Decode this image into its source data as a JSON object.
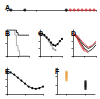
{
  "chart_data": [
    {
      "type": "timeline",
      "title": "A",
      "x": [
        -28,
        -21,
        0,
        2,
        4,
        6,
        8,
        10,
        12,
        14
      ],
      "values": [
        0,
        0,
        0,
        0,
        0,
        0,
        0,
        0,
        0,
        0
      ],
      "colors": [
        "#000000",
        "#000000",
        "#000000",
        "#d62728",
        "#d62728",
        "#d62728",
        "#d62728",
        "#d62728",
        "#d62728",
        "#d62728"
      ],
      "xlim": [
        -30,
        15
      ],
      "xticks": [
        -30,
        -15,
        0,
        15
      ],
      "ylim": [
        -1,
        1
      ],
      "yticks": [],
      "tick_labels": false,
      "marker": "circle"
    },
    {
      "type": "line",
      "title": "B",
      "x": [
        0,
        1,
        2,
        3,
        4,
        5,
        6,
        7,
        8,
        9,
        10,
        11,
        12,
        13,
        14
      ],
      "series": [
        {
          "color": "#999999",
          "values": [
            100,
            100,
            100,
            100,
            100,
            80,
            40,
            20,
            0,
            0,
            0,
            0,
            0,
            0,
            0
          ]
        },
        {
          "color": "#000000",
          "values": [
            100,
            100,
            100,
            100,
            100,
            100,
            90,
            80,
            80,
            80,
            80,
            80,
            80,
            80,
            80
          ]
        }
      ],
      "xlim": [
        0,
        14
      ],
      "xticks": [
        0,
        7,
        14
      ],
      "ylim": [
        0,
        100
      ],
      "yticks": [
        0,
        50,
        100
      ],
      "line_style": "step",
      "tick_labels": false
    },
    {
      "type": "line",
      "title": "C",
      "x": [
        0,
        1,
        2,
        3,
        4,
        5,
        6,
        7,
        8,
        9,
        10
      ],
      "series": [
        {
          "color": "#999999",
          "values": [
            100,
            99,
            97,
            94,
            90,
            85,
            80,
            78,
            null,
            null,
            null
          ]
        },
        {
          "color": "#000000",
          "values": [
            100,
            100,
            98,
            95,
            92,
            88,
            85,
            84,
            86,
            90,
            93
          ]
        }
      ],
      "xlim": [
        0,
        10
      ],
      "xticks": [
        0,
        5,
        10
      ],
      "ylim": [
        70,
        105
      ],
      "yticks": [
        70,
        80,
        90,
        100
      ],
      "marker": "circle",
      "tick_labels": false
    },
    {
      "type": "line",
      "title": "D",
      "x": [
        0,
        2,
        4,
        6,
        8,
        10,
        12
      ],
      "series": [
        {
          "color": "#000000",
          "values": [
            100,
            97,
            90,
            84,
            80,
            83,
            88
          ]
        },
        {
          "color": "#000000",
          "values": [
            100,
            95,
            88,
            80,
            76,
            79,
            85
          ]
        },
        {
          "color": "#d62728",
          "values": [
            100,
            96,
            86,
            78,
            74,
            null,
            null
          ]
        },
        {
          "color": "#d62728",
          "values": [
            100,
            94,
            84,
            76,
            null,
            null,
            null
          ]
        },
        {
          "color": "#d62728",
          "values": [
            100,
            98,
            92,
            86,
            82,
            84,
            90
          ]
        }
      ],
      "xlim": [
        0,
        12
      ],
      "xticks": [
        0,
        6,
        12
      ],
      "ylim": [
        70,
        105
      ],
      "yticks": [
        70,
        80,
        90,
        100
      ],
      "tick_labels": false
    },
    {
      "type": "line",
      "title": "E",
      "x": [
        0,
        1,
        2,
        3,
        4,
        5,
        6,
        7,
        8,
        9,
        10
      ],
      "series": [
        {
          "color": "#000000",
          "values": [
            100,
            99,
            96,
            92,
            88,
            84,
            80,
            78,
            77,
            78,
            80
          ]
        }
      ],
      "xlim": [
        0,
        10
      ],
      "xticks": [
        0,
        5,
        10
      ],
      "ylim": [
        70,
        105
      ],
      "yticks": [
        70,
        80,
        90,
        100
      ],
      "marker": "circle",
      "tick_labels": false
    },
    {
      "type": "scatter",
      "title": "F",
      "series": [
        {
          "color": "#e8a040",
          "x": [
            1,
            1,
            1,
            1,
            1,
            1,
            1,
            1
          ],
          "values": [
            3.2,
            3.6,
            3.9,
            4.1,
            4.3,
            4.6,
            4.8,
            5.1
          ]
        },
        {
          "color": "#000000",
          "x": [
            2,
            2,
            2,
            2,
            2,
            2
          ],
          "values": [
            1.2,
            1.6,
            1.9,
            2.2,
            2.5,
            2.9
          ]
        }
      ],
      "xlim": [
        0.5,
        2.5
      ],
      "xticks": [
        1,
        2
      ],
      "ylim": [
        0,
        6
      ],
      "yticks": [
        0,
        2,
        4,
        6
      ],
      "tick_labels": false
    }
  ]
}
